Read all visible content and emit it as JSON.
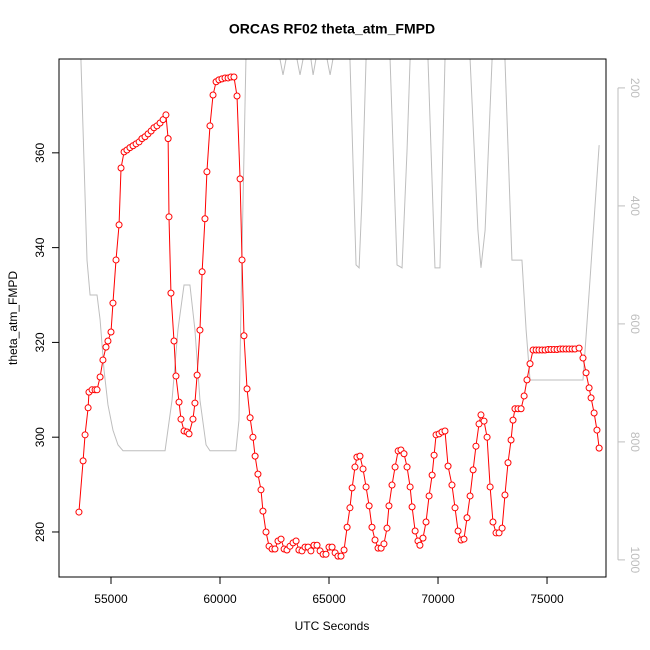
{
  "chart_data": {
    "type": "line",
    "title": "ORCAS RF02 theta_atm_FMPD",
    "xlabel": "UTC Seconds",
    "ylabel": "theta_atm_FMPD",
    "xlim": [
      52615,
      77705
    ],
    "ylim": [
      270.5,
      379.8
    ],
    "y2lim": [
      1029,
      151
    ],
    "xticks": [
      55000,
      60000,
      65000,
      70000,
      75000
    ],
    "yticks": [
      280,
      300,
      320,
      340,
      360
    ],
    "y2ticks": [
      200,
      400,
      600,
      800,
      1000
    ],
    "series": [
      {
        "color": "#bebebe",
        "axis": "y2",
        "x": [
          53620,
          53760,
          53900,
          54040,
          54360,
          54500,
          54680,
          54860,
          55090,
          55320,
          55550,
          57480,
          57800,
          58070,
          58350,
          58620,
          58850,
          59080,
          59360,
          59540,
          60730,
          60870,
          61010,
          61190,
          62750,
          62890,
          63030,
          63530,
          63670,
          63810,
          64170,
          64270,
          64400,
          64910,
          65050,
          65180,
          65960,
          66240,
          66380,
          66510,
          66700,
          67800,
          68120,
          68350,
          68580,
          68720,
          69540,
          69860,
          70090,
          70320,
          71470,
          71830,
          71970,
          72160,
          72480,
          73070,
          73390,
          73850,
          74040,
          74220,
          76650,
          76970,
          77390
        ],
        "values": [
          151,
          322,
          492,
          551,
          551,
          593,
          678,
          737,
          780,
          805,
          815,
          815,
          729,
          610,
          534,
          534,
          610,
          729,
          805,
          815,
          815,
          763,
          475,
          151,
          151,
          178,
          151,
          151,
          178,
          151,
          151,
          178,
          151,
          151,
          178,
          151,
          151,
          500,
          505,
          390,
          151,
          151,
          500,
          505,
          305,
          151,
          151,
          505,
          505,
          151,
          151,
          441,
          505,
          441,
          151,
          151,
          492,
          492,
          610,
          695,
          695,
          526,
          297
        ]
      },
      {
        "color": "#ff0000",
        "marker": "circle",
        "x": [
          53530,
          53720,
          53810,
          53950,
          53990,
          54130,
          54270,
          54360,
          54500,
          54630,
          54770,
          54860,
          55000,
          55090,
          55230,
          55370,
          55460,
          55600,
          55730,
          55870,
          56010,
          56150,
          56290,
          56420,
          56560,
          56700,
          56840,
          56970,
          57110,
          57250,
          57390,
          57520,
          57620,
          57660,
          57750,
          57890,
          57980,
          58120,
          58210,
          58350,
          58490,
          58580,
          58760,
          58850,
          58950,
          59080,
          59180,
          59310,
          59400,
          59540,
          59680,
          59820,
          59950,
          60090,
          60230,
          60370,
          60500,
          60640,
          60780,
          60920,
          61010,
          61100,
          61240,
          61380,
          61510,
          61610,
          61740,
          61880,
          61970,
          62110,
          62250,
          62390,
          62520,
          62660,
          62800,
          62940,
          63070,
          63210,
          63350,
          63490,
          63620,
          63760,
          63900,
          64040,
          64170,
          64310,
          64450,
          64590,
          64730,
          64860,
          65000,
          65140,
          65280,
          65410,
          65550,
          65690,
          65830,
          65960,
          66060,
          66190,
          66280,
          66420,
          66560,
          66700,
          66840,
          66970,
          67110,
          67250,
          67390,
          67520,
          67660,
          67750,
          67890,
          68030,
          68170,
          68300,
          68440,
          68580,
          68720,
          68810,
          68950,
          69080,
          69170,
          69310,
          69450,
          69590,
          69730,
          69820,
          69910,
          70050,
          70180,
          70320,
          70460,
          70640,
          70780,
          70920,
          71060,
          71190,
          71330,
          71470,
          71610,
          71740,
          71880,
          71970,
          72110,
          72250,
          72390,
          72520,
          72660,
          72800,
          72940,
          73070,
          73210,
          73350,
          73440,
          73530,
          73670,
          73810,
          73950,
          74080,
          74220,
          74360,
          74500,
          74630,
          74770,
          74910,
          75050,
          75180,
          75320,
          75460,
          75600,
          75730,
          75870,
          76010,
          76150,
          76280,
          76470,
          76650,
          76790,
          76930,
          77020,
          77160,
          77290,
          77390
        ],
        "values": [
          284.2,
          295.0,
          300.5,
          306.2,
          309.5,
          310.0,
          310.0,
          310.0,
          312.7,
          316.3,
          319.0,
          320.3,
          322.2,
          328.3,
          337.4,
          344.8,
          356.8,
          360.2,
          360.6,
          361.1,
          361.5,
          361.9,
          362.3,
          363.0,
          363.4,
          364.0,
          364.6,
          365.3,
          365.7,
          366.3,
          367.0,
          368.0,
          363.0,
          346.5,
          330.4,
          320.3,
          312.9,
          307.4,
          303.8,
          301.3,
          301.1,
          300.7,
          303.8,
          307.2,
          313.1,
          322.6,
          334.9,
          346.1,
          356.0,
          365.7,
          372.2,
          375.0,
          375.4,
          375.6,
          375.8,
          375.8,
          376.0,
          376.0,
          372.0,
          354.5,
          337.4,
          321.4,
          310.2,
          304.1,
          300.0,
          296.0,
          292.2,
          288.9,
          284.4,
          280.0,
          277.0,
          276.4,
          276.4,
          278.1,
          278.5,
          276.4,
          276.2,
          277.0,
          277.7,
          278.1,
          276.2,
          276.0,
          276.8,
          276.8,
          276.0,
          277.2,
          277.2,
          276.0,
          275.3,
          275.3,
          276.8,
          276.8,
          275.6,
          274.9,
          274.9,
          276.2,
          281.0,
          285.1,
          289.3,
          293.7,
          295.8,
          296.0,
          293.3,
          289.5,
          285.5,
          281.0,
          278.3,
          276.6,
          276.6,
          277.5,
          280.8,
          285.5,
          289.9,
          293.7,
          297.1,
          297.3,
          296.5,
          293.7,
          289.5,
          285.3,
          280.2,
          278.1,
          277.2,
          278.7,
          282.1,
          287.6,
          292.0,
          296.2,
          300.5,
          300.7,
          301.1,
          301.3,
          293.9,
          289.9,
          285.1,
          280.2,
          278.3,
          278.5,
          283.0,
          287.6,
          293.1,
          298.1,
          302.8,
          304.7,
          303.4,
          300.0,
          289.5,
          282.1,
          279.8,
          279.8,
          280.8,
          287.8,
          294.6,
          299.4,
          303.6,
          306.0,
          306.0,
          306.0,
          308.7,
          312.1,
          315.5,
          318.4,
          318.4,
          318.4,
          318.4,
          318.4,
          318.5,
          318.5,
          318.5,
          318.5,
          318.6,
          318.6,
          318.6,
          318.6,
          318.6,
          318.6,
          318.8,
          316.7,
          313.6,
          310.4,
          308.3,
          305.1,
          301.5,
          297.7
        ]
      }
    ]
  }
}
